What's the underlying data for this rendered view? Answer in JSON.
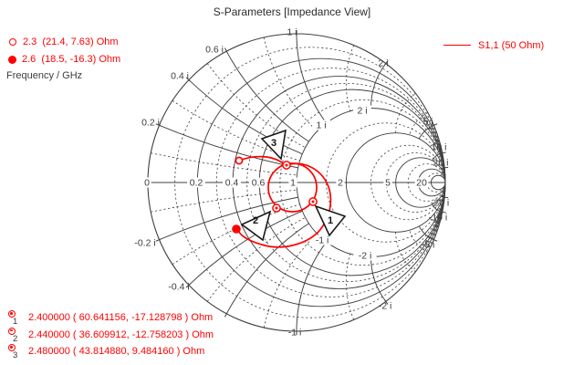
{
  "title": "S-Parameters [Impedance View]",
  "legend_left": {
    "items": [
      {
        "marker_icon": "open-circle",
        "label": "2.3  (21.4, 7.63) Ohm"
      },
      {
        "marker_icon": "filled-circle",
        "label": "2.6  (18.5, -16.3) Ohm"
      }
    ],
    "caption": "Frequency / GHz"
  },
  "legend_right": {
    "line_icon": "red-line",
    "label": "S1,1 (50 Ohm)"
  },
  "marker_readouts": [
    {
      "id": "1",
      "text": "2.400000 ( 60.641156, -17.128798 ) Ohm"
    },
    {
      "id": "2",
      "text": "2.440000 ( 36.609912, -12.758203 ) Ohm"
    },
    {
      "id": "3",
      "text": "2.480000 ( 43.814880, 9.484160 ) Ohm"
    }
  ],
  "colors": {
    "trace": "#ff0000",
    "grid": "#404040",
    "label": "#3c3c3c",
    "title": "#2b2b2b"
  },
  "chart_data": {
    "type": "smith",
    "title": "S-Parameters [Impedance View]",
    "view": "Impedance View",
    "reference_impedance_ohm": 50,
    "frequency_unit": "GHz",
    "series": [
      {
        "name": "S1,1 (50 Ohm)",
        "color": "#ff0000",
        "points": [
          {
            "f_ghz": 2.3,
            "z_ohm": [
              21.4,
              7.63
            ],
            "role": "start-open-circle"
          },
          {
            "f_ghz": 2.4,
            "z_ohm": [
              60.641156,
              -17.128798
            ],
            "role": "marker-1"
          },
          {
            "f_ghz": 2.44,
            "z_ohm": [
              36.609912,
              -12.758203
            ],
            "role": "marker-2"
          },
          {
            "f_ghz": 2.48,
            "z_ohm": [
              43.81488,
              9.48416
            ],
            "role": "marker-3"
          },
          {
            "f_ghz": 2.6,
            "z_ohm": [
              18.5,
              -16.3
            ],
            "role": "end-filled-circle"
          }
        ]
      }
    ],
    "grid": {
      "resistance_solid": [
        0.2,
        0.4,
        0.6,
        1,
        2,
        5,
        10,
        20
      ],
      "resistance_dashed": [
        0.1,
        0.3,
        0.5,
        0.8,
        1.5,
        3,
        4,
        7,
        15
      ],
      "reactance_solid": [
        0.2,
        0.4,
        0.6,
        1,
        2,
        5,
        10,
        20
      ],
      "reactance_dashed": [
        0.1,
        0.3,
        0.5,
        0.8,
        1.5,
        3,
        4,
        7,
        15
      ]
    },
    "axis_labels": [
      {
        "r": 0,
        "label": "0"
      },
      {
        "r": 0.2,
        "label": "0.2"
      },
      {
        "r": 0.4,
        "label": "0.4"
      },
      {
        "r": 0.6,
        "label": "0.6"
      },
      {
        "r": 1,
        "label": "1"
      },
      {
        "r": 2,
        "label": "2"
      },
      {
        "r": 5,
        "label": "5"
      },
      {
        "r": 20,
        "label": "20"
      }
    ],
    "rim_labels": [
      {
        "x": 0.2,
        "label": "0.2 i"
      },
      {
        "x": 0.4,
        "label": "0.4 i"
      },
      {
        "x": 0.6,
        "label": "0.6 i"
      },
      {
        "x": 1,
        "label": "1 i"
      },
      {
        "x": 2,
        "label": "2 i"
      },
      {
        "x": 5,
        "label": "5 i"
      },
      {
        "x": 10,
        "label": "10 i"
      },
      {
        "x": 20,
        "label": "20 i"
      },
      {
        "x": -0.2,
        "label": "-0.2 i"
      },
      {
        "x": -0.4,
        "label": "-0.4 i"
      },
      {
        "x": -1,
        "label": "-1 i"
      },
      {
        "x": -2,
        "label": "-2 i"
      },
      {
        "x": -5,
        "label": "-5 i"
      },
      {
        "x": -10,
        "label": "-10 i"
      },
      {
        "x": -20,
        "label": "-20 i"
      }
    ],
    "inner_labels": [
      {
        "x": 1,
        "label": "1 i"
      },
      {
        "x": 2,
        "label": "2 i"
      },
      {
        "x": -1,
        "label": "-1 i"
      },
      {
        "x": -2,
        "label": "-2 i"
      }
    ],
    "flags": [
      {
        "id": "1"
      },
      {
        "id": "2"
      },
      {
        "id": "3"
      }
    ]
  }
}
